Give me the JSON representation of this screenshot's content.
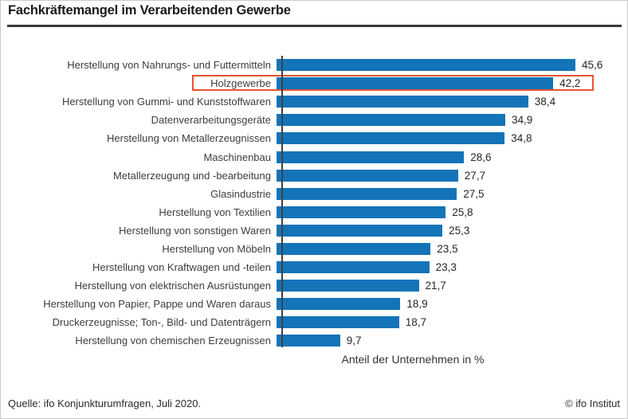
{
  "title": "Fachkräftemangel im Verarbeitenden Gewerbe",
  "chart_data": {
    "type": "bar",
    "orientation": "horizontal",
    "categories": [
      "Herstellung von Nahrungs- und Futtermitteln",
      "Holzgewerbe",
      "Herstellung von Gummi- und Kunststoffwaren",
      "Datenverarbeitungsgeräte",
      "Herstellung von Metallerzeugnissen",
      "Maschinenbau",
      "Metallerzeugung und -bearbeitung",
      "Glasindustrie",
      "Herstellung von Textilien",
      "Herstellung von sonstigen Waren",
      "Herstellung von Möbeln",
      "Herstellung von Kraftwagen und -teilen",
      "Herstellung von elektrischen Ausrüstungen",
      "Herstellung von Papier, Pappe und Waren daraus",
      "Druckerzeugnisse; Ton-, Bild- und Datenträgern",
      "Herstellung von chemischen Erzeugnissen"
    ],
    "values": [
      45.6,
      42.2,
      38.4,
      34.9,
      34.8,
      28.6,
      27.7,
      27.5,
      25.8,
      25.3,
      23.5,
      23.3,
      21.7,
      18.9,
      18.7,
      9.7
    ],
    "value_labels": [
      "45,6",
      "42,2",
      "38,4",
      "34,9",
      "34,8",
      "28,6",
      "27,7",
      "27,5",
      "25,8",
      "25,3",
      "23,5",
      "23,3",
      "21,7",
      "18,9",
      "18,7",
      "9,7"
    ],
    "xlabel": "Anteil der Unternehmen in %",
    "xlim": [
      0,
      50
    ],
    "grid": false,
    "legend": false,
    "bar_color": "#1474b8",
    "highlight": {
      "category": "Holzgewerbe",
      "index": 1,
      "box_color": "#e85330"
    }
  },
  "footer": {
    "source": "Quelle: ifo Konjunkturumfragen, Juli 2020.",
    "copyright": "© ifo Institut"
  }
}
